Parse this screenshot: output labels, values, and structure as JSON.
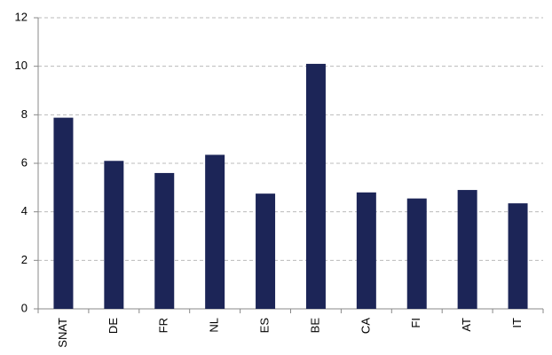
{
  "chart_data": {
    "type": "bar",
    "categories": [
      "SNAT",
      "DE",
      "FR",
      "NL",
      "ES",
      "BE",
      "CA",
      "FI",
      "AT",
      "IT"
    ],
    "values": [
      7.88,
      6.1,
      5.6,
      6.35,
      4.75,
      10.1,
      4.8,
      4.55,
      4.9,
      4.35
    ],
    "color": "#1c2557",
    "ylim": [
      0,
      12
    ],
    "yticks": [
      0,
      2,
      4,
      6,
      8,
      10,
      12
    ],
    "grid": true
  }
}
